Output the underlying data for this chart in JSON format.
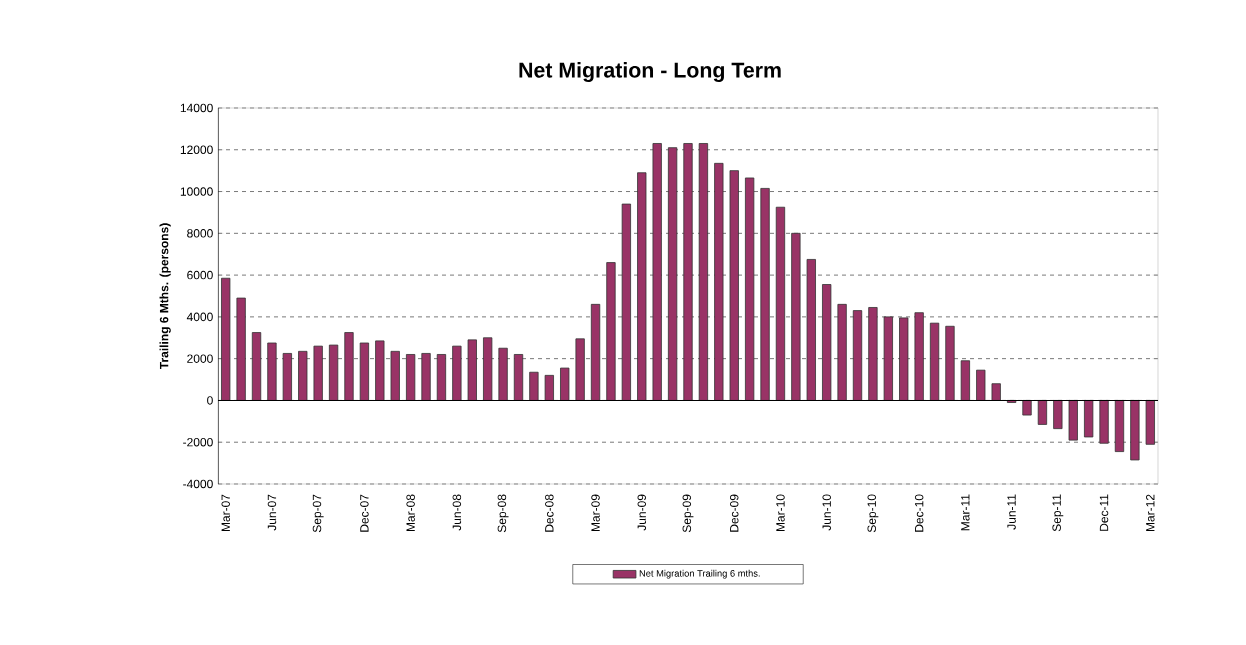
{
  "chart_data": {
    "type": "bar",
    "title": "Net Migration - Long Term",
    "ylabel": "Trailing 6 Mths. (persons)",
    "categories": [
      "Mar-07",
      null,
      null,
      "Jun-07",
      null,
      null,
      "Sep-07",
      null,
      null,
      "Dec-07",
      null,
      null,
      "Mar-08",
      null,
      null,
      "Jun-08",
      null,
      null,
      "Sep-08",
      null,
      null,
      "Dec-08",
      null,
      null,
      "Mar-09",
      null,
      null,
      "Jun-09",
      null,
      null,
      "Sep-09",
      null,
      null,
      "Dec-09",
      null,
      null,
      "Mar-10",
      null,
      null,
      "Jun-10",
      null,
      null,
      "Sep-10",
      null,
      null,
      "Dec-10",
      null,
      null,
      "Mar-11",
      null,
      null,
      "Jun-11",
      null,
      null,
      "Sep-11",
      null,
      null,
      "Dec-11",
      null,
      null,
      "Mar-12"
    ],
    "series": [
      {
        "name": "Net Migration Trailing 6 mths.",
        "color": "#993366",
        "values": [
          5850,
          4900,
          3250,
          2750,
          2250,
          2350,
          2600,
          2650,
          3250,
          2750,
          2850,
          2350,
          2200,
          2250,
          2200,
          2600,
          2900,
          3000,
          2500,
          2200,
          1350,
          1200,
          1550,
          2950,
          4600,
          6600,
          9400,
          10900,
          12300,
          12100,
          12300,
          12300,
          11350,
          11000,
          10650,
          10150,
          9250,
          8000,
          6750,
          5550,
          4600,
          4300,
          4450,
          4000,
          3950,
          4200,
          3700,
          3550,
          1900,
          1450,
          800,
          -100,
          -700,
          -1150,
          -1350,
          -1900,
          -1750,
          -2050,
          -2450,
          -2850,
          -2100
        ]
      }
    ],
    "ylim": [
      -4000,
      14000
    ],
    "yticks": [
      -4000,
      -2000,
      0,
      2000,
      4000,
      6000,
      8000,
      10000,
      12000,
      14000
    ],
    "grid": "y",
    "legend": "bottom"
  }
}
